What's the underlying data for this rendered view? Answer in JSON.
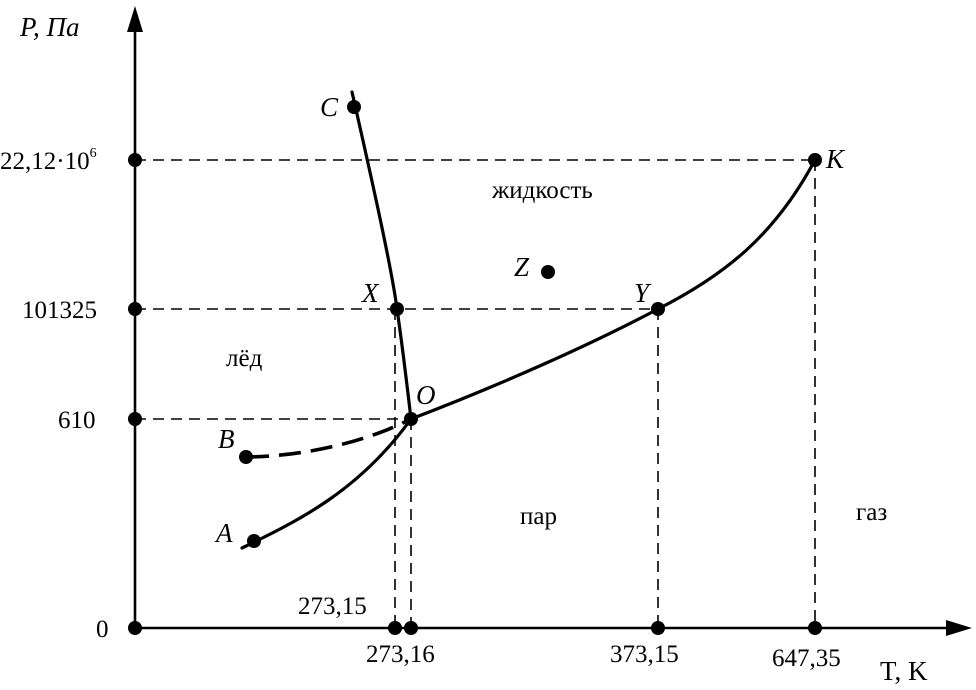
{
  "axes": {
    "y_label": "P, Па",
    "x_label": "T, K",
    "y_ticks": [
      {
        "label": "22,12·10",
        "sup": "6"
      },
      {
        "label": "101325"
      },
      {
        "label": "610"
      },
      {
        "label": "0"
      }
    ],
    "x_ticks": [
      "273,15",
      "273,16",
      "373,15",
      "647,35"
    ]
  },
  "regions": {
    "liquid": "жидкость",
    "ice": "лёд",
    "vapor": "пар",
    "gas": "газ"
  },
  "points": {
    "A": "A",
    "B": "B",
    "C": "C",
    "O": "O",
    "X": "X",
    "Y": "Y",
    "Z": "Z",
    "K": "K"
  }
}
